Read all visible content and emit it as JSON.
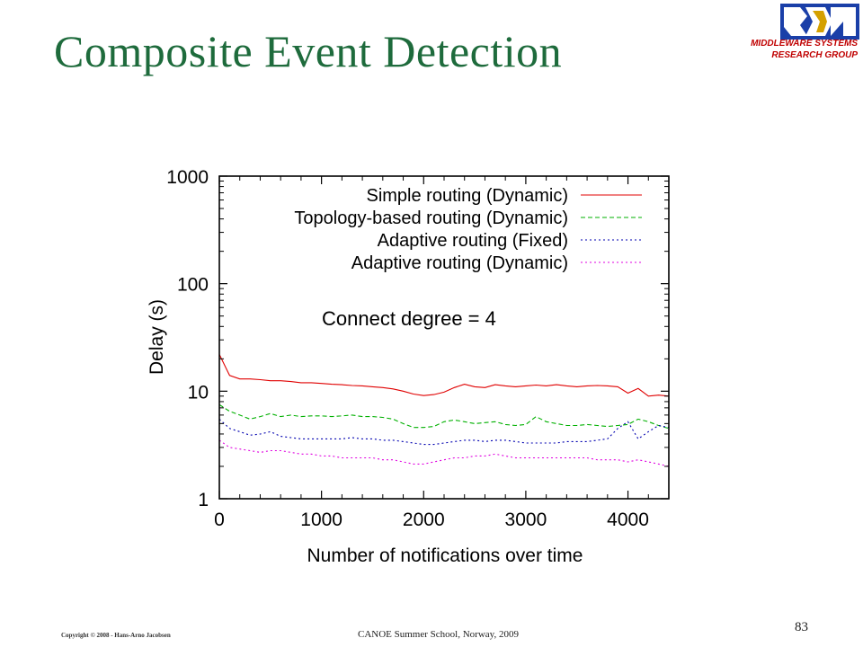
{
  "slide": {
    "title": "Composite Event Detection",
    "group_line1": "MIDDLEWARE SYSTEMS",
    "group_line2": "RESEARCH GROUP",
    "copyright": "Copyright © 2008 - Hans-Arno Jacobsen",
    "venue": "CANOE Summer School, Norway, 2009",
    "page_number": "83",
    "logo_icon": "msrg-logo-icon",
    "title_color": "#1e6b3c",
    "group_color": "#c00000"
  },
  "chart_data": {
    "type": "line",
    "xlabel": "Number of notifications over time",
    "ylabel": "Delay (s)",
    "xlim": [
      0,
      4400
    ],
    "ylim": [
      1,
      1000
    ],
    "yscale": "log",
    "xticks": [
      0,
      1000,
      2000,
      3000,
      4000
    ],
    "xtick_labels": [
      "0",
      "1000",
      "2000",
      "3000",
      "4000"
    ],
    "yticks": [
      1,
      10,
      100,
      1000
    ],
    "ytick_labels": [
      "1",
      "10",
      "100",
      "1000"
    ],
    "legend_position": "top-right",
    "annotation": "Connect degree = 4",
    "grid": false,
    "x": [
      0,
      100,
      200,
      300,
      400,
      500,
      600,
      700,
      800,
      900,
      1000,
      1100,
      1200,
      1300,
      1400,
      1500,
      1600,
      1700,
      1800,
      1900,
      2000,
      2100,
      2200,
      2300,
      2400,
      2500,
      2600,
      2700,
      2800,
      2900,
      3000,
      3100,
      3200,
      3300,
      3400,
      3500,
      3600,
      3700,
      3800,
      3900,
      4000,
      4100,
      4200,
      4300,
      4400
    ],
    "series": [
      {
        "name": "Simple routing (Dynamic)",
        "color": "#e00000",
        "dash": "solid",
        "values": [
          22,
          14,
          13,
          13,
          12.8,
          12.5,
          12.5,
          12.3,
          12,
          12,
          11.8,
          11.6,
          11.5,
          11.3,
          11.2,
          11,
          10.8,
          10.5,
          10,
          9.4,
          9.1,
          9.3,
          9.8,
          10.8,
          11.6,
          11,
          10.8,
          11.5,
          11.2,
          11,
          11.2,
          11.4,
          11.2,
          11.5,
          11.2,
          11,
          11.2,
          11.3,
          11.2,
          11,
          9.6,
          10.6,
          9,
          9.2,
          9
        ]
      },
      {
        "name": "Topology-based routing (Dynamic)",
        "color": "#00b000",
        "dash": "dashed",
        "values": [
          7.5,
          6.5,
          6,
          5.5,
          5.8,
          6.2,
          5.8,
          6,
          5.8,
          5.9,
          5.9,
          5.8,
          5.9,
          6,
          5.8,
          5.8,
          5.7,
          5.5,
          5,
          4.6,
          4.6,
          4.7,
          5.2,
          5.4,
          5.2,
          5,
          5.1,
          5.2,
          4.9,
          4.8,
          4.9,
          5.8,
          5.2,
          5,
          4.8,
          4.8,
          4.9,
          4.8,
          4.7,
          4.8,
          4.9,
          5.5,
          5.2,
          4.8,
          4.5
        ]
      },
      {
        "name": "Adaptive routing (Fixed)",
        "color": "#0000b0",
        "dash": "dotted",
        "values": [
          5.5,
          4.5,
          4.2,
          3.9,
          4,
          4.2,
          3.8,
          3.7,
          3.6,
          3.6,
          3.6,
          3.6,
          3.6,
          3.7,
          3.6,
          3.6,
          3.5,
          3.5,
          3.4,
          3.3,
          3.2,
          3.2,
          3.3,
          3.4,
          3.5,
          3.5,
          3.4,
          3.5,
          3.5,
          3.4,
          3.3,
          3.3,
          3.3,
          3.3,
          3.4,
          3.4,
          3.4,
          3.5,
          3.6,
          4.5,
          5.2,
          3.6,
          4.2,
          4.8,
          4.6
        ]
      },
      {
        "name": "Adaptive routing (Dynamic)",
        "color": "#e000e0",
        "dash": "dotted",
        "values": [
          3.5,
          3,
          2.9,
          2.8,
          2.7,
          2.8,
          2.8,
          2.7,
          2.6,
          2.6,
          2.5,
          2.5,
          2.4,
          2.4,
          2.4,
          2.4,
          2.3,
          2.3,
          2.2,
          2.1,
          2.1,
          2.2,
          2.3,
          2.4,
          2.4,
          2.5,
          2.5,
          2.6,
          2.5,
          2.4,
          2.4,
          2.4,
          2.4,
          2.4,
          2.4,
          2.4,
          2.4,
          2.3,
          2.3,
          2.3,
          2.2,
          2.3,
          2.2,
          2.1,
          2
        ]
      }
    ]
  }
}
